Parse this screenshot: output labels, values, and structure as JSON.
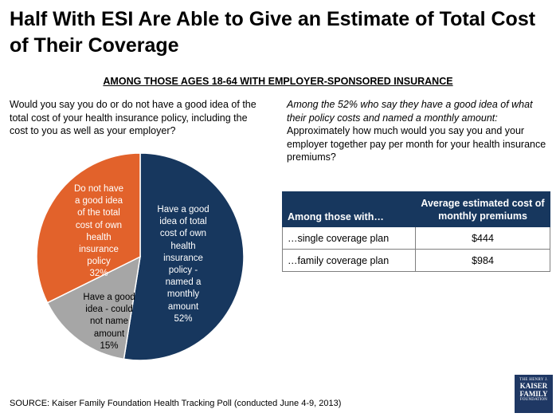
{
  "title": "Half With ESI Are Able to Give an Estimate of Total Cost of Their Coverage",
  "subtitle": "AMONG THOSE AGES 18-64 WITH EMPLOYER-SPONSORED INSURANCE",
  "question_left": "Would you say you do or do not have a good idea of the total cost of your health insurance policy, including the cost to you as well as your employer?",
  "question_right": {
    "italic": "Among the 52% who say they have a good idea of what their policy costs and named a monthly amount:",
    "plain": " Approximately how much would you say you and your employer together pay per month for your health insurance premiums?"
  },
  "chart_data": {
    "type": "pie",
    "slices": [
      {
        "name": "Have a good idea of total cost of own health insurance policy - named a monthly amount",
        "value": 52,
        "label_lines": [
          "Have a good",
          "idea of total",
          "cost of own",
          "health",
          "insurance",
          "policy -",
          "named a",
          "monthly",
          "amount",
          "52%"
        ],
        "color": "#17375e"
      },
      {
        "name": "Have a good idea - could not name amount",
        "value": 15,
        "label_lines": [
          "Have a good",
          "idea - could",
          "not name",
          "amount",
          "15%"
        ],
        "color": "#a6a6a6"
      },
      {
        "name": "Do not have a good idea of the total cost of own health insurance policy",
        "value": 32,
        "label_lines": [
          "Do not have",
          "a good idea",
          "of the total",
          "cost of own",
          "health",
          "insurance",
          "policy",
          "32%"
        ],
        "color": "#e2622b"
      }
    ]
  },
  "table": {
    "header": [
      "Among those with…",
      "Average estimated cost of monthly premiums"
    ],
    "rows": [
      [
        "…single coverage plan",
        "$444"
      ],
      [
        "…family coverage plan",
        "$984"
      ]
    ]
  },
  "source": "SOURCE: Kaiser Family Foundation Health Tracking Poll (conducted June 4-9, 2013)",
  "logo": {
    "line1": "THE HENRY J.",
    "line2": "KAISER",
    "line3": "FAMILY",
    "line4": "FOUNDATION"
  }
}
